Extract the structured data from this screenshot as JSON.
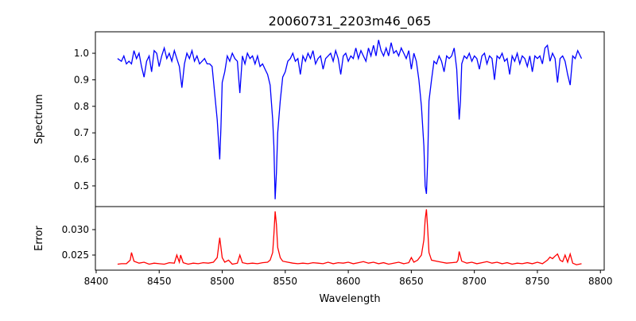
{
  "chart_data": [
    {
      "type": "line",
      "title": "20060731_2203m46_065",
      "xlabel": "",
      "ylabel": "Spectrum",
      "xlim": [
        8399.4,
        8803
      ],
      "ylim": [
        0.422,
        1.081
      ],
      "yticks": [
        0.5,
        0.6,
        0.7,
        0.8,
        0.9,
        1.0
      ],
      "ytick_labels": [
        "0.5",
        "0.6",
        "0.7",
        "0.8",
        "0.9",
        "1.0"
      ],
      "color": "#0000ff",
      "grid": false,
      "points": [
        [
          8417,
          0.98
        ],
        [
          8420,
          0.97
        ],
        [
          8422,
          0.99
        ],
        [
          8424,
          0.96
        ],
        [
          8426,
          0.97
        ],
        [
          8428,
          0.96
        ],
        [
          8430,
          1.01
        ],
        [
          8432,
          0.98
        ],
        [
          8434,
          1.0
        ],
        [
          8436,
          0.95
        ],
        [
          8438,
          0.91
        ],
        [
          8440,
          0.97
        ],
        [
          8442,
          0.99
        ],
        [
          8444,
          0.93
        ],
        [
          8446,
          1.01
        ],
        [
          8448,
          1.0
        ],
        [
          8450,
          0.95
        ],
        [
          8452,
          0.99
        ],
        [
          8454,
          1.02
        ],
        [
          8456,
          0.98
        ],
        [
          8458,
          1.0
        ],
        [
          8460,
          0.97
        ],
        [
          8462,
          1.01
        ],
        [
          8464,
          0.98
        ],
        [
          8466,
          0.95
        ],
        [
          8468,
          0.87
        ],
        [
          8470,
          0.96
        ],
        [
          8472,
          1.0
        ],
        [
          8474,
          0.98
        ],
        [
          8476,
          1.01
        ],
        [
          8478,
          0.97
        ],
        [
          8480,
          0.99
        ],
        [
          8482,
          0.96
        ],
        [
          8484,
          0.97
        ],
        [
          8486,
          0.98
        ],
        [
          8488,
          0.96
        ],
        [
          8490,
          0.96
        ],
        [
          8492,
          0.95
        ],
        [
          8494,
          0.85
        ],
        [
          8496,
          0.75
        ],
        [
          8498,
          0.6
        ],
        [
          8499,
          0.72
        ],
        [
          8500,
          0.89
        ],
        [
          8502,
          0.93
        ],
        [
          8504,
          0.99
        ],
        [
          8506,
          0.97
        ],
        [
          8508,
          1.0
        ],
        [
          8510,
          0.98
        ],
        [
          8512,
          0.97
        ],
        [
          8514,
          0.85
        ],
        [
          8516,
          0.99
        ],
        [
          8518,
          0.96
        ],
        [
          8520,
          1.0
        ],
        [
          8522,
          0.98
        ],
        [
          8524,
          0.99
        ],
        [
          8526,
          0.96
        ],
        [
          8528,
          0.99
        ],
        [
          8530,
          0.95
        ],
        [
          8532,
          0.96
        ],
        [
          8534,
          0.94
        ],
        [
          8536,
          0.92
        ],
        [
          8538,
          0.88
        ],
        [
          8540,
          0.75
        ],
        [
          8541,
          0.65
        ],
        [
          8542,
          0.45
        ],
        [
          8543,
          0.55
        ],
        [
          8544,
          0.7
        ],
        [
          8546,
          0.82
        ],
        [
          8548,
          0.91
        ],
        [
          8550,
          0.93
        ],
        [
          8552,
          0.97
        ],
        [
          8554,
          0.98
        ],
        [
          8556,
          1.0
        ],
        [
          8558,
          0.97
        ],
        [
          8560,
          0.98
        ],
        [
          8562,
          0.92
        ],
        [
          8564,
          0.99
        ],
        [
          8566,
          0.97
        ],
        [
          8568,
          1.0
        ],
        [
          8570,
          0.98
        ],
        [
          8572,
          1.01
        ],
        [
          8574,
          0.96
        ],
        [
          8576,
          0.98
        ],
        [
          8578,
          0.99
        ],
        [
          8580,
          0.94
        ],
        [
          8582,
          0.98
        ],
        [
          8584,
          0.99
        ],
        [
          8586,
          1.0
        ],
        [
          8588,
          0.97
        ],
        [
          8590,
          1.01
        ],
        [
          8592,
          0.98
        ],
        [
          8594,
          0.92
        ],
        [
          8596,
          0.99
        ],
        [
          8598,
          1.0
        ],
        [
          8600,
          0.97
        ],
        [
          8602,
          0.99
        ],
        [
          8604,
          0.98
        ],
        [
          8606,
          1.02
        ],
        [
          8608,
          0.98
        ],
        [
          8610,
          1.01
        ],
        [
          8612,
          0.99
        ],
        [
          8614,
          0.97
        ],
        [
          8616,
          1.02
        ],
        [
          8618,
          0.99
        ],
        [
          8620,
          1.03
        ],
        [
          8622,
          0.99
        ],
        [
          8624,
          1.05
        ],
        [
          8626,
          1.01
        ],
        [
          8628,
          0.99
        ],
        [
          8630,
          1.02
        ],
        [
          8632,
          0.99
        ],
        [
          8634,
          1.04
        ],
        [
          8636,
          1.0
        ],
        [
          8638,
          1.01
        ],
        [
          8640,
          0.99
        ],
        [
          8642,
          1.02
        ],
        [
          8644,
          1.0
        ],
        [
          8646,
          0.98
        ],
        [
          8648,
          1.01
        ],
        [
          8650,
          0.94
        ],
        [
          8652,
          1.0
        ],
        [
          8654,
          0.97
        ],
        [
          8656,
          0.9
        ],
        [
          8658,
          0.8
        ],
        [
          8660,
          0.65
        ],
        [
          8661,
          0.5
        ],
        [
          8662,
          0.47
        ],
        [
          8663,
          0.6
        ],
        [
          8664,
          0.82
        ],
        [
          8666,
          0.9
        ],
        [
          8668,
          0.97
        ],
        [
          8670,
          0.96
        ],
        [
          8672,
          0.99
        ],
        [
          8674,
          0.97
        ],
        [
          8676,
          0.93
        ],
        [
          8678,
          0.99
        ],
        [
          8680,
          0.98
        ],
        [
          8682,
          0.99
        ],
        [
          8684,
          1.02
        ],
        [
          8686,
          0.94
        ],
        [
          8688,
          0.75
        ],
        [
          8689,
          0.82
        ],
        [
          8690,
          0.96
        ],
        [
          8692,
          0.99
        ],
        [
          8694,
          0.98
        ],
        [
          8696,
          1.0
        ],
        [
          8698,
          0.97
        ],
        [
          8700,
          0.99
        ],
        [
          8702,
          0.98
        ],
        [
          8704,
          0.94
        ],
        [
          8706,
          0.99
        ],
        [
          8708,
          1.0
        ],
        [
          8710,
          0.96
        ],
        [
          8712,
          0.99
        ],
        [
          8714,
          0.98
        ],
        [
          8716,
          0.9
        ],
        [
          8718,
          0.99
        ],
        [
          8720,
          0.98
        ],
        [
          8722,
          1.0
        ],
        [
          8724,
          0.97
        ],
        [
          8726,
          0.98
        ],
        [
          8728,
          0.92
        ],
        [
          8730,
          0.99
        ],
        [
          8732,
          0.97
        ],
        [
          8734,
          1.0
        ],
        [
          8736,
          0.96
        ],
        [
          8738,
          0.99
        ],
        [
          8740,
          0.98
        ],
        [
          8742,
          0.95
        ],
        [
          8744,
          0.99
        ],
        [
          8746,
          0.93
        ],
        [
          8748,
          0.99
        ],
        [
          8750,
          0.98
        ],
        [
          8752,
          0.99
        ],
        [
          8754,
          0.96
        ],
        [
          8756,
          1.02
        ],
        [
          8758,
          1.03
        ],
        [
          8760,
          0.97
        ],
        [
          8762,
          1.0
        ],
        [
          8764,
          0.98
        ],
        [
          8766,
          0.89
        ],
        [
          8768,
          0.98
        ],
        [
          8770,
          0.99
        ],
        [
          8772,
          0.97
        ],
        [
          8774,
          0.92
        ],
        [
          8776,
          0.88
        ],
        [
          8778,
          0.99
        ],
        [
          8780,
          0.98
        ],
        [
          8782,
          1.01
        ],
        [
          8784,
          0.99
        ],
        [
          8785,
          0.98
        ]
      ]
    },
    {
      "type": "line",
      "title": "",
      "xlabel": "Wavelength",
      "ylabel": "Error",
      "xlim": [
        8399.4,
        8803
      ],
      "ylim": [
        0.02203,
        0.03453
      ],
      "xticks": [
        8400,
        8450,
        8500,
        8550,
        8600,
        8650,
        8700,
        8750,
        8800
      ],
      "xtick_labels": [
        "8400",
        "8450",
        "8500",
        "8550",
        "8600",
        "8650",
        "8700",
        "8750",
        "8800"
      ],
      "yticks": [
        0.025,
        0.03
      ],
      "ytick_labels": [
        "0.025",
        "0.030"
      ],
      "color": "#ff0000",
      "grid": false,
      "points": [
        [
          8417,
          0.0232
        ],
        [
          8420,
          0.0233
        ],
        [
          8424,
          0.0233
        ],
        [
          8427,
          0.024
        ],
        [
          8428,
          0.0255
        ],
        [
          8430,
          0.0238
        ],
        [
          8434,
          0.0234
        ],
        [
          8438,
          0.0236
        ],
        [
          8442,
          0.0232
        ],
        [
          8446,
          0.0234
        ],
        [
          8450,
          0.0233
        ],
        [
          8454,
          0.0232
        ],
        [
          8458,
          0.0235
        ],
        [
          8462,
          0.0234
        ],
        [
          8464,
          0.025
        ],
        [
          8466,
          0.0236
        ],
        [
          8467,
          0.025
        ],
        [
          8469,
          0.0235
        ],
        [
          8473,
          0.0232
        ],
        [
          8477,
          0.0234
        ],
        [
          8481,
          0.0233
        ],
        [
          8485,
          0.0235
        ],
        [
          8489,
          0.0234
        ],
        [
          8493,
          0.0236
        ],
        [
          8496,
          0.0245
        ],
        [
          8498,
          0.0284
        ],
        [
          8500,
          0.0245
        ],
        [
          8502,
          0.0236
        ],
        [
          8505,
          0.024
        ],
        [
          8508,
          0.0232
        ],
        [
          8512,
          0.0234
        ],
        [
          8514,
          0.025
        ],
        [
          8516,
          0.0235
        ],
        [
          8520,
          0.0233
        ],
        [
          8524,
          0.0234
        ],
        [
          8528,
          0.0233
        ],
        [
          8532,
          0.0235
        ],
        [
          8536,
          0.0236
        ],
        [
          8538,
          0.024
        ],
        [
          8540,
          0.0255
        ],
        [
          8541,
          0.029
        ],
        [
          8542,
          0.0336
        ],
        [
          8543,
          0.031
        ],
        [
          8544,
          0.0265
        ],
        [
          8546,
          0.0245
        ],
        [
          8548,
          0.0238
        ],
        [
          8552,
          0.0236
        ],
        [
          8556,
          0.0234
        ],
        [
          8560,
          0.0233
        ],
        [
          8564,
          0.0234
        ],
        [
          8568,
          0.0233
        ],
        [
          8572,
          0.0235
        ],
        [
          8576,
          0.0234
        ],
        [
          8580,
          0.0233
        ],
        [
          8584,
          0.0236
        ],
        [
          8588,
          0.0233
        ],
        [
          8592,
          0.0235
        ],
        [
          8596,
          0.0234
        ],
        [
          8600,
          0.0236
        ],
        [
          8604,
          0.0233
        ],
        [
          8608,
          0.0235
        ],
        [
          8612,
          0.0237
        ],
        [
          8616,
          0.0234
        ],
        [
          8620,
          0.0236
        ],
        [
          8624,
          0.0233
        ],
        [
          8628,
          0.0235
        ],
        [
          8632,
          0.0232
        ],
        [
          8636,
          0.0234
        ],
        [
          8640,
          0.0236
        ],
        [
          8644,
          0.0233
        ],
        [
          8648,
          0.0235
        ],
        [
          8650,
          0.0245
        ],
        [
          8652,
          0.0236
        ],
        [
          8655,
          0.024
        ],
        [
          8658,
          0.025
        ],
        [
          8660,
          0.028
        ],
        [
          8661,
          0.032
        ],
        [
          8662,
          0.034
        ],
        [
          8663,
          0.03
        ],
        [
          8664,
          0.0255
        ],
        [
          8666,
          0.024
        ],
        [
          8670,
          0.0238
        ],
        [
          8674,
          0.0236
        ],
        [
          8678,
          0.0234
        ],
        [
          8682,
          0.0235
        ],
        [
          8686,
          0.0236
        ],
        [
          8687,
          0.024
        ],
        [
          8688,
          0.0257
        ],
        [
          8690,
          0.0238
        ],
        [
          8694,
          0.0234
        ],
        [
          8698,
          0.0236
        ],
        [
          8702,
          0.0233
        ],
        [
          8706,
          0.0235
        ],
        [
          8710,
          0.0237
        ],
        [
          8714,
          0.0234
        ],
        [
          8718,
          0.0236
        ],
        [
          8722,
          0.0233
        ],
        [
          8726,
          0.0235
        ],
        [
          8730,
          0.0232
        ],
        [
          8734,
          0.0234
        ],
        [
          8738,
          0.0233
        ],
        [
          8742,
          0.0235
        ],
        [
          8746,
          0.0233
        ],
        [
          8750,
          0.0236
        ],
        [
          8754,
          0.0233
        ],
        [
          8758,
          0.024
        ],
        [
          8760,
          0.0246
        ],
        [
          8762,
          0.0243
        ],
        [
          8764,
          0.0248
        ],
        [
          8766,
          0.0252
        ],
        [
          8768,
          0.024
        ],
        [
          8770,
          0.0237
        ],
        [
          8772,
          0.025
        ],
        [
          8774,
          0.0236
        ],
        [
          8776,
          0.0252
        ],
        [
          8778,
          0.0234
        ],
        [
          8781,
          0.0231
        ],
        [
          8785,
          0.0233
        ]
      ]
    }
  ]
}
